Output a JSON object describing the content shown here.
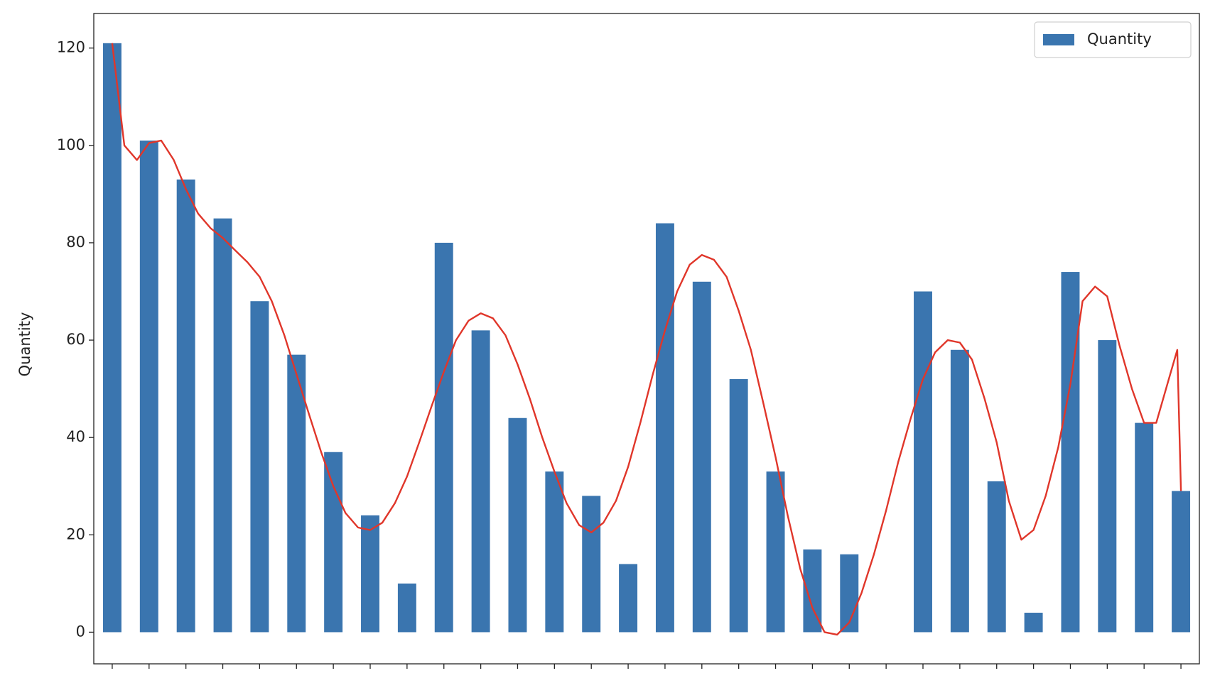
{
  "chart_data": {
    "type": "bar",
    "y_label": "Quantity",
    "categories": [
      null,
      null,
      null,
      null,
      null,
      null,
      null,
      null,
      null,
      null,
      null,
      null,
      null,
      null,
      null,
      null,
      null,
      null,
      null,
      null,
      null,
      null,
      null,
      null,
      null,
      null,
      null,
      null,
      null,
      null
    ],
    "series": [
      {
        "name": "Quantity",
        "color": "#3a75af",
        "type": "bar",
        "values": [
          121,
          101,
          93,
          85,
          68,
          57,
          37,
          24,
          10,
          80,
          62,
          44,
          33,
          28,
          14,
          84,
          72,
          52,
          33,
          17,
          16,
          0,
          70,
          58,
          31,
          4,
          74,
          60,
          43,
          29
        ]
      },
      {
        "color": "#e0362a",
        "type": "line",
        "x": [
          0,
          0.33,
          0.67,
          1,
          1.33,
          1.67,
          2,
          2.33,
          2.67,
          3,
          3.33,
          3.67,
          4,
          4.33,
          4.67,
          5,
          5.33,
          5.67,
          6,
          6.33,
          6.67,
          7,
          7.33,
          7.67,
          8,
          8.33,
          8.67,
          9,
          9.33,
          9.67,
          10,
          10.33,
          10.67,
          11,
          11.33,
          11.67,
          12,
          12.33,
          12.67,
          13,
          13.33,
          13.67,
          14,
          14.33,
          14.67,
          15,
          15.33,
          15.67,
          16,
          16.33,
          16.67,
          17,
          17.33,
          17.67,
          18,
          18.33,
          18.67,
          19,
          19.33,
          19.67,
          20,
          20.33,
          20.67,
          21,
          21.33,
          21.67,
          22,
          22.33,
          22.67,
          23,
          23.33,
          23.67,
          24,
          24.33,
          24.67,
          25,
          25.33,
          25.67,
          26,
          26.33,
          26.67,
          27,
          27.33,
          27.67,
          28,
          28.33,
          28.67,
          28.9,
          29
        ],
        "values": [
          121,
          100,
          97,
          100.5,
          101,
          97,
          91,
          86,
          83,
          81,
          78.5,
          76,
          73,
          68,
          61,
          53,
          45,
          37,
          30,
          24.5,
          21.5,
          21,
          22.5,
          26.5,
          32,
          39,
          46.5,
          53.5,
          60,
          64,
          65.5,
          64.5,
          61,
          55,
          48,
          40,
          33,
          26.5,
          22,
          20.5,
          22.5,
          27,
          34,
          43,
          53,
          62,
          70,
          75.5,
          77.5,
          76.5,
          73,
          66,
          58,
          47,
          36,
          24,
          13,
          5,
          0,
          -0.5,
          2,
          8,
          16,
          25,
          35,
          44,
          52,
          57.5,
          60,
          59.5,
          56,
          48,
          39,
          27,
          19,
          21,
          28,
          38,
          51,
          68,
          71,
          69,
          59,
          50,
          43,
          43,
          52,
          58,
          29
        ]
      }
    ],
    "xlim": [
      -0.5,
      29.5
    ],
    "ylim": [
      -6.5,
      127.1
    ],
    "yticks": [
      0,
      20,
      40,
      60,
      80,
      100,
      120
    ],
    "legend": "upper right"
  }
}
